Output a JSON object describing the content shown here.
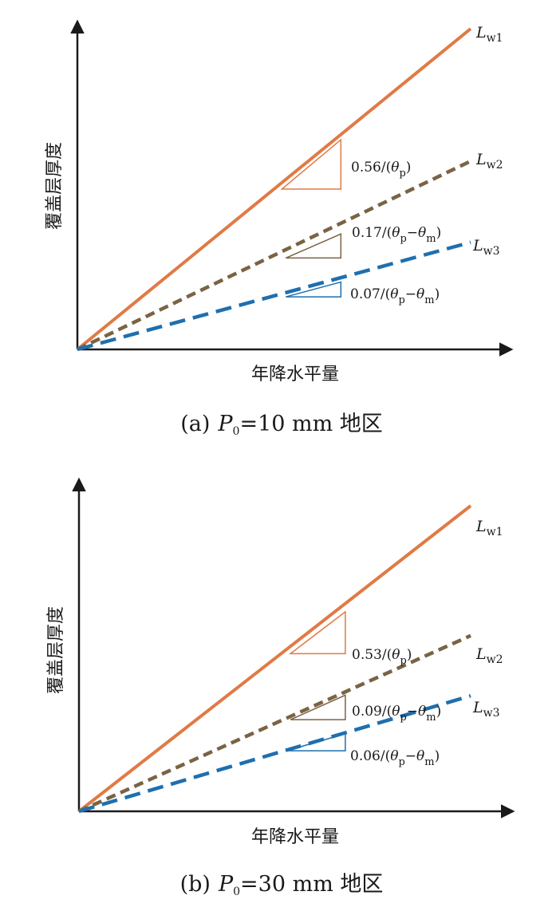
{
  "colors": {
    "Lw1": "#e07a45",
    "Lw2": "#7a6344",
    "Lw3": "#1f6fae",
    "axis": "#1a1a1a"
  },
  "chart_data": [
    {
      "type": "line",
      "caption": {
        "open": "(a)",
        "var": "P",
        "sub": "0",
        "rest": "=10 mm 地区"
      },
      "xlabel": "年降水平量",
      "ylabel": "覆盖层厚度",
      "xlim": [
        0,
        1
      ],
      "ylim": [
        0,
        1
      ],
      "series": [
        {
          "name": "Lw1",
          "label_main": "L",
          "label_sub": "w1",
          "style": "solid",
          "x": [
            0,
            1
          ],
          "y": [
            0,
            1
          ],
          "slope_label": [
            "0.56/(",
            "θ",
            "p",
            ")"
          ],
          "triangle_x": [
            0.52,
            0.67
          ],
          "triangle_y": [
            0.5,
            0.654
          ]
        },
        {
          "name": "Lw2",
          "label_main": "L",
          "label_sub": "w2",
          "style": "dashed",
          "x": [
            0,
            1
          ],
          "y": [
            0,
            0.587
          ],
          "slope_label": [
            "0.17/(",
            "θ",
            "p",
            "−",
            "θ",
            "m",
            ")"
          ],
          "triangle_x": [
            0.53,
            0.67
          ],
          "triangle_y": [
            0.285,
            0.36
          ]
        },
        {
          "name": "Lw3",
          "label_main": "L",
          "label_sub": "w3",
          "style": "dashed",
          "x": [
            0,
            1
          ],
          "y": [
            0,
            0.334
          ],
          "slope_label": [
            "0.07/(",
            "θ",
            "p",
            "−",
            "θ",
            "m",
            ")"
          ],
          "triangle_x": [
            0.53,
            0.67
          ],
          "triangle_y": [
            0.164,
            0.21
          ]
        }
      ]
    },
    {
      "type": "line",
      "caption": {
        "open": "(b)",
        "var": "P",
        "sub": "0",
        "rest": "=30 mm 地区"
      },
      "xlabel": "年降水平量",
      "ylabel": "覆盖层厚度",
      "xlim": [
        0,
        1
      ],
      "ylim": [
        0,
        1
      ],
      "series": [
        {
          "name": "Lw1",
          "label_main": "L",
          "label_sub": "w1",
          "style": "solid",
          "x": [
            0,
            1
          ],
          "y": [
            0,
            1
          ],
          "slope_label": [
            "0.53/(",
            "θ",
            "p",
            ")"
          ],
          "triangle_x": [
            0.54,
            0.68
          ],
          "triangle_y": [
            0.516,
            0.653
          ]
        },
        {
          "name": "Lw2",
          "label_main": "L",
          "label_sub": "w2",
          "style": "dashed",
          "x": [
            0,
            1
          ],
          "y": [
            0,
            0.575
          ],
          "slope_label": [
            "0.09/(",
            "θ",
            "p",
            "−",
            "θ",
            "m",
            ")"
          ],
          "triangle_x": [
            0.54,
            0.68
          ],
          "triangle_y": [
            0.3,
            0.38
          ]
        },
        {
          "name": "Lw3",
          "label_main": "L",
          "label_sub": "w3",
          "style": "dashed",
          "x": [
            0,
            1
          ],
          "y": [
            0,
            0.378
          ],
          "slope_label": [
            "0.06/(",
            "θ",
            "p",
            "−",
            "θ",
            "m",
            ")"
          ],
          "triangle_x": [
            0.53,
            0.68
          ],
          "triangle_y": [
            0.198,
            0.254
          ]
        }
      ]
    }
  ]
}
